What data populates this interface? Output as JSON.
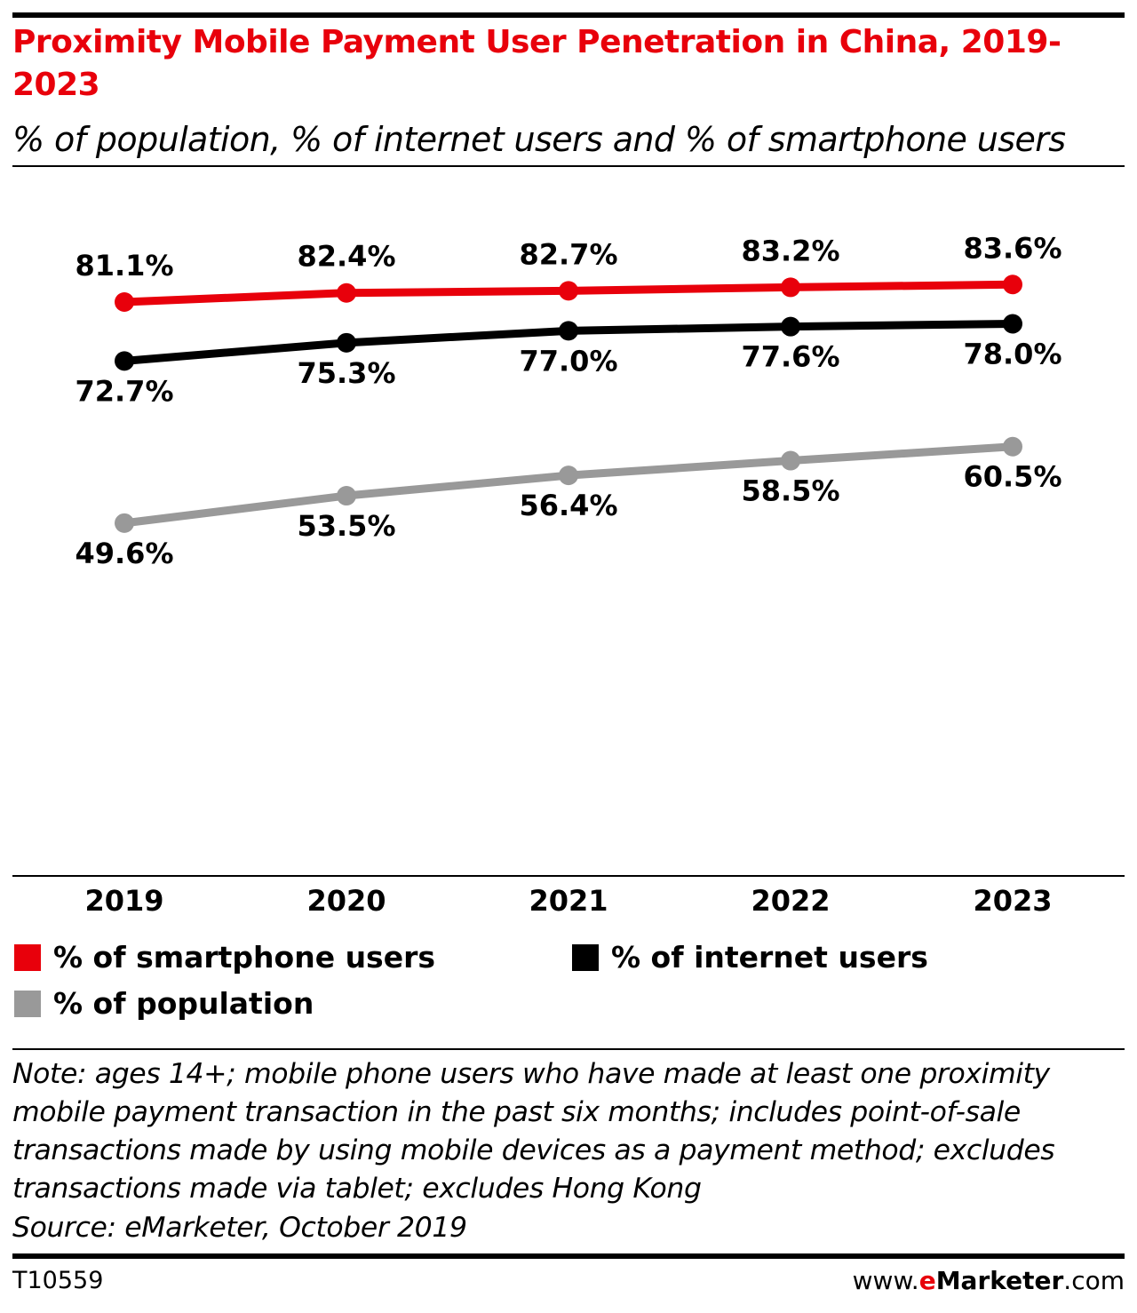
{
  "header": {
    "title": "Proximity Mobile Payment User Penetration in China, 2019-2023",
    "subtitle": "% of population, % of internet users and % of smartphone users"
  },
  "chart_data": {
    "type": "line",
    "title": "Proximity Mobile Payment User Penetration in China, 2019-2023",
    "subtitle": "% of population, % of internet users and % of smartphone users",
    "xlabel": "",
    "ylabel": "",
    "categories": [
      "2019",
      "2020",
      "2021",
      "2022",
      "2023"
    ],
    "ylim": [
      0,
      100
    ],
    "grid": false,
    "legend_position": "bottom",
    "series": [
      {
        "name": "% of smartphone users",
        "color": "#e8000b",
        "values": [
          81.1,
          82.4,
          82.7,
          83.2,
          83.6
        ],
        "labels": [
          "81.1%",
          "82.4%",
          "82.7%",
          "83.2%",
          "83.6%"
        ],
        "label_position": "above"
      },
      {
        "name": "% of internet users",
        "color": "#000000",
        "values": [
          72.7,
          75.3,
          77.0,
          77.6,
          78.0
        ],
        "labels": [
          "72.7%",
          "75.3%",
          "77.0%",
          "77.6%",
          "78.0%"
        ],
        "label_position": "below"
      },
      {
        "name": "% of population",
        "color": "#999999",
        "values": [
          49.6,
          53.5,
          56.4,
          58.5,
          60.5
        ],
        "labels": [
          "49.6%",
          "53.5%",
          "56.4%",
          "58.5%",
          "60.5%"
        ],
        "label_position": "below"
      }
    ]
  },
  "legend": {
    "items": [
      {
        "label": "% of smartphone users",
        "color": "#e8000b"
      },
      {
        "label": "% of internet users",
        "color": "#000000"
      },
      {
        "label": "% of population",
        "color": "#999999"
      }
    ]
  },
  "footer": {
    "note": "Note: ages 14+; mobile phone users who have made at least one proximity mobile payment transaction in the past six months; includes point-of-sale transactions made by using mobile devices as a payment method; excludes transactions made via tablet; excludes Hong Kong",
    "source": "Source: eMarketer, October 2019",
    "chart_id": "T10559",
    "brand_prefix": "www.",
    "brand_e": "e",
    "brand_name": "Marketer",
    "brand_suffix": ".com"
  }
}
